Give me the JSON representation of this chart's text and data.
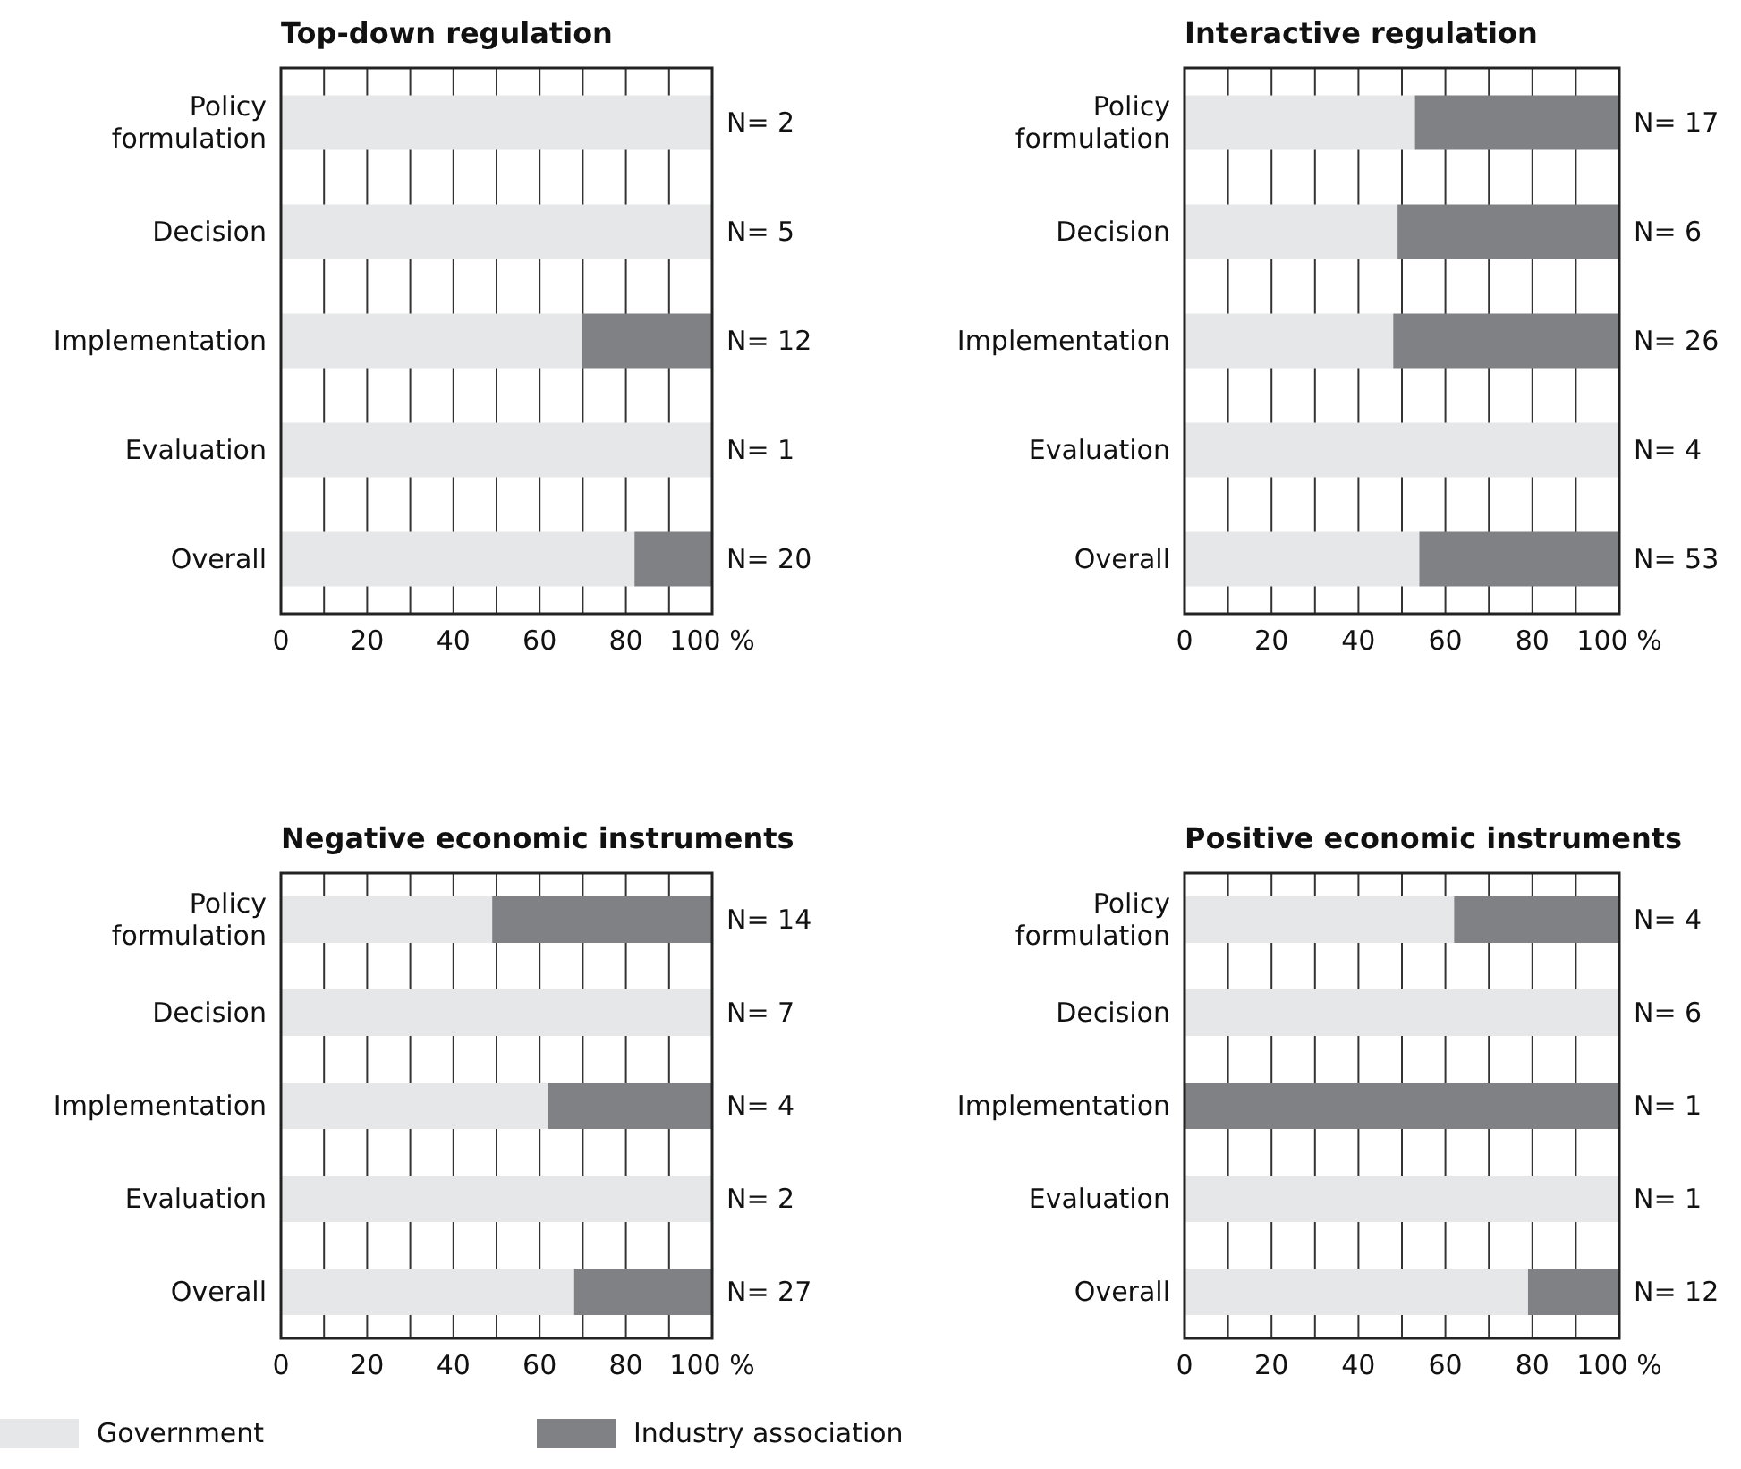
{
  "chart_data": [
    {
      "type": "bar",
      "orientation": "horizontal",
      "stacked": true,
      "title": "Top-down regulation",
      "categories": [
        "Policy formulation",
        "Decision",
        "Implementation",
        "Evaluation",
        "Overall"
      ],
      "series": [
        {
          "color": "#e6e7e8",
          "values": [
            100,
            100,
            70,
            100,
            82
          ]
        },
        {
          "color": "#808184",
          "values": [
            0,
            0,
            30,
            0,
            18
          ]
        }
      ],
      "xlim": [
        0,
        100
      ],
      "xticks": [
        0,
        {
          "value": 10,
          "label": null
        },
        20,
        {
          "value": 30,
          "label": null
        },
        40,
        {
          "value": 50,
          "label": null
        },
        60,
        {
          "value": 70,
          "label": null
        },
        80,
        {
          "value": 90,
          "label": null
        },
        {
          "value": 100,
          "label": "100 %"
        }
      ],
      "grid": "x",
      "annotations": [
        "N= 2",
        "N= 5",
        "N= 12",
        "N= 1",
        "N= 20"
      ]
    },
    {
      "type": "bar",
      "orientation": "horizontal",
      "stacked": true,
      "title": "Interactive regulation",
      "categories": [
        "Policy formulation",
        "Decision",
        "Implementation",
        "Evaluation",
        "Overall"
      ],
      "series": [
        {
          "color": "#e6e7e8",
          "values": [
            53,
            49,
            48,
            100,
            54
          ]
        },
        {
          "color": "#808184",
          "values": [
            47,
            51,
            52,
            0,
            46
          ]
        }
      ],
      "xlim": [
        0,
        100
      ],
      "xticks": [
        0,
        {
          "value": 10,
          "label": null
        },
        20,
        {
          "value": 30,
          "label": null
        },
        40,
        {
          "value": 50,
          "label": null
        },
        60,
        {
          "value": 70,
          "label": null
        },
        80,
        {
          "value": 90,
          "label": null
        },
        {
          "value": 100,
          "label": "100 %"
        }
      ],
      "grid": "x",
      "annotations": [
        "N= 17",
        "N= 6",
        "N= 26",
        "N= 4",
        "N= 53"
      ]
    },
    {
      "type": "bar",
      "orientation": "horizontal",
      "stacked": true,
      "title": "Negative economic instruments",
      "categories": [
        "Policy formulation",
        "Decision",
        "Implementation",
        "Evaluation",
        "Overall"
      ],
      "series": [
        {
          "name": "Government",
          "color": "#e6e7e8",
          "values": [
            49,
            100,
            62,
            100,
            68
          ]
        },
        {
          "name": "Industry association",
          "color": "#808184",
          "values": [
            51,
            0,
            38,
            0,
            32
          ]
        }
      ],
      "xlim": [
        0,
        100
      ],
      "xticks": [
        0,
        {
          "value": 10,
          "label": null
        },
        20,
        {
          "value": 30,
          "label": null
        },
        40,
        {
          "value": 50,
          "label": null
        },
        60,
        {
          "value": 70,
          "label": null
        },
        80,
        {
          "value": 90,
          "label": null
        },
        {
          "value": 100,
          "label": "100 %"
        }
      ],
      "grid": "x",
      "legend": "bottom",
      "annotations": [
        "N= 14",
        "N= 7",
        "N= 4",
        "N= 2",
        "N= 27"
      ]
    },
    {
      "type": "bar",
      "orientation": "horizontal",
      "stacked": true,
      "title": "Positive economic instruments",
      "categories": [
        "Policy formulation",
        "Decision",
        "Implementation",
        "Evaluation",
        "Overall"
      ],
      "series": [
        {
          "color": "#e6e7e8",
          "values": [
            62,
            100,
            0,
            100,
            79
          ]
        },
        {
          "color": "#808184",
          "values": [
            38,
            0,
            100,
            0,
            21
          ]
        }
      ],
      "xlim": [
        0,
        100
      ],
      "xticks": [
        0,
        {
          "value": 10,
          "label": null
        },
        20,
        {
          "value": 30,
          "label": null
        },
        40,
        {
          "value": 50,
          "label": null
        },
        60,
        {
          "value": 70,
          "label": null
        },
        80,
        {
          "value": 90,
          "label": null
        },
        {
          "value": 100,
          "label": "100 %"
        }
      ],
      "grid": "x",
      "annotations": [
        "N= 4",
        "N= 6",
        "N= 1",
        "N= 1",
        "N= 12"
      ]
    }
  ]
}
